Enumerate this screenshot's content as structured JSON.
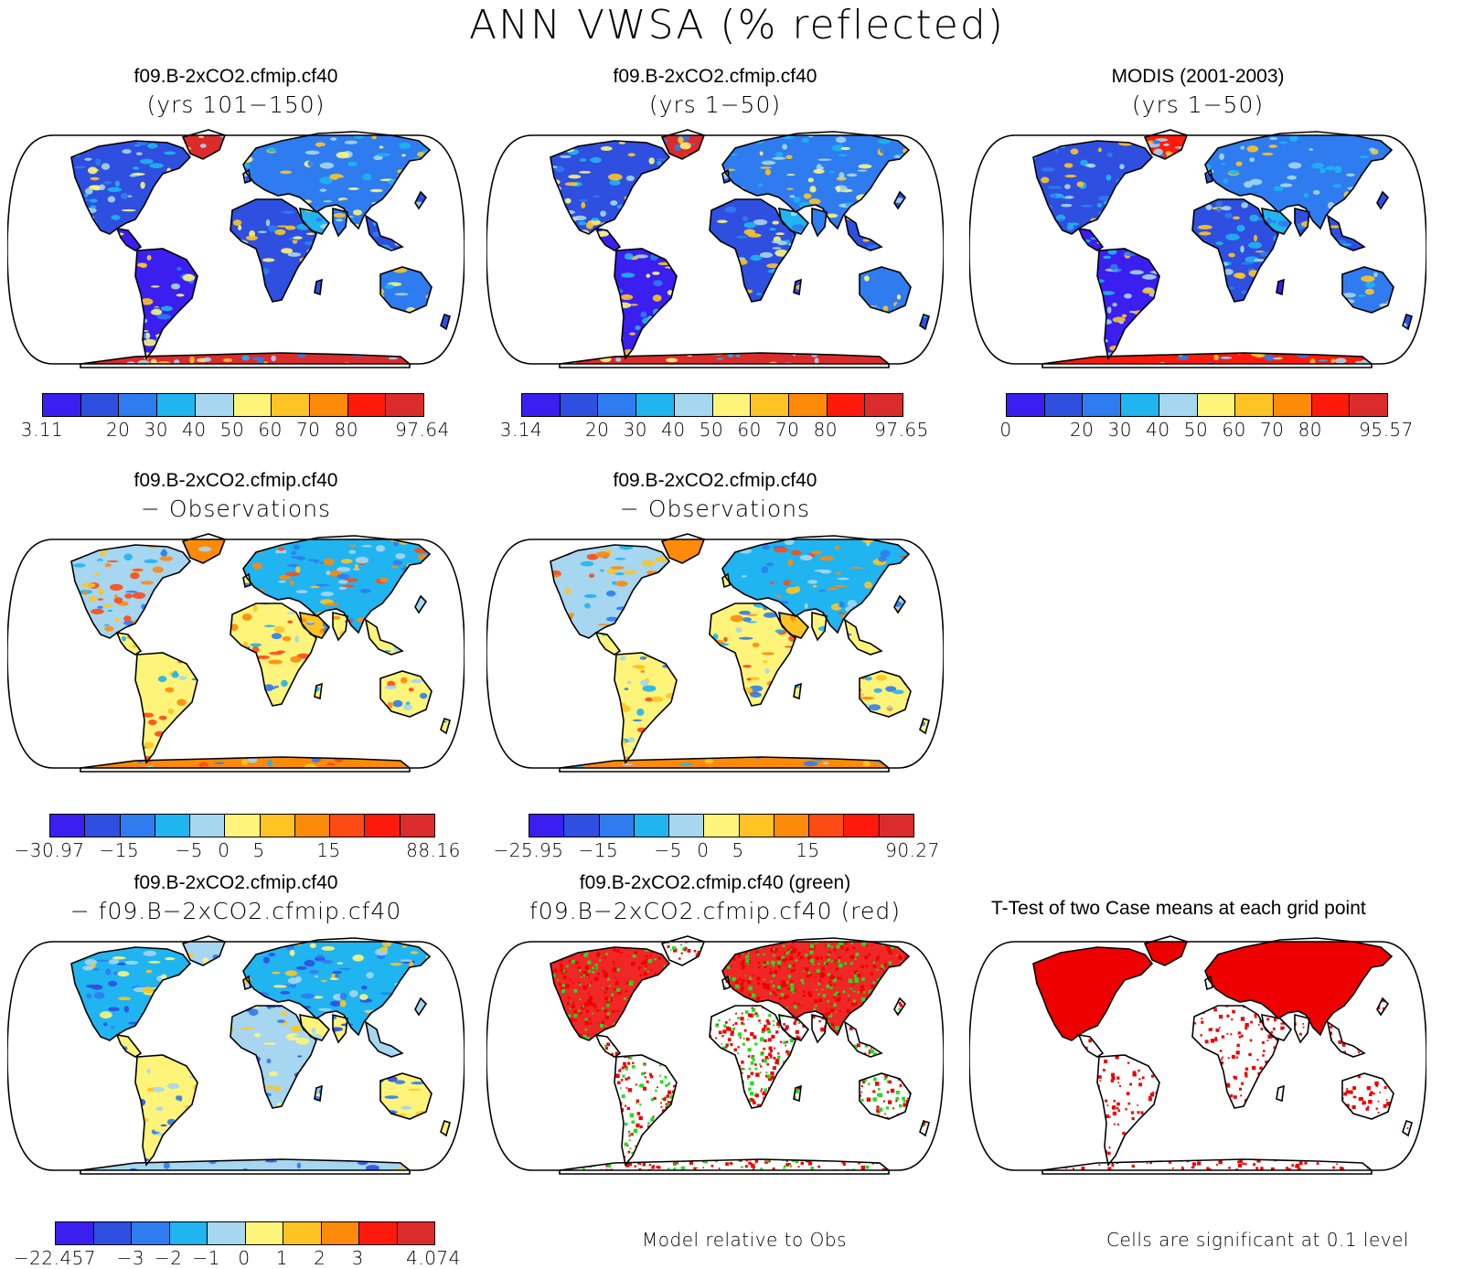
{
  "title": "ANN VWSA (% reflected)",
  "colors": {
    "abs": [
      "#3a1ff0",
      "#2e4fe0",
      "#2e7cf0",
      "#20b4f0",
      "#a6d6f0",
      "#fef47a",
      "#fec424",
      "#fe8a0a",
      "#fe1a0a",
      "#dc2b2b"
    ],
    "diff": [
      "#3a1ff0",
      "#2e4fe0",
      "#2e7cf0",
      "#20b4f0",
      "#a6d6f0",
      "#fef47a",
      "#fec424",
      "#fe8a0a",
      "#fe4a14",
      "#fe1a0a",
      "#dc2b2b"
    ],
    "t_green": "#22dd22",
    "t_red": "#ee0000"
  },
  "panels": [
    {
      "id": "p1",
      "line1": "f09.B-2xCO2.cfmip.cf40",
      "line2": "(yrs 101−150)",
      "scheme": "abs",
      "palette": "abs",
      "cbar_labels": [
        "3.11",
        "20",
        "30",
        "40",
        "50",
        "60",
        "70",
        "80",
        "97.64"
      ]
    },
    {
      "id": "p2",
      "line1": "f09.B-2xCO2.cfmip.cf40",
      "line2": "(yrs 1−50)",
      "scheme": "abs",
      "palette": "abs",
      "cbar_labels": [
        "3.14",
        "20",
        "30",
        "40",
        "50",
        "60",
        "70",
        "80",
        "97.65"
      ]
    },
    {
      "id": "p3",
      "line1": "MODIS (2001-2003)",
      "line2": "(yrs 1−50)",
      "scheme": "obs",
      "palette": "abs",
      "cbar_labels": [
        "0",
        "20",
        "30",
        "40",
        "50",
        "60",
        "70",
        "80",
        "95.57"
      ]
    },
    {
      "id": "p4",
      "line1": "f09.B-2xCO2.cfmip.cf40",
      "line2": "− Observations",
      "scheme": "diffobs",
      "palette": "diff",
      "cbar_labels": [
        "−30.97",
        "−15",
        "−5",
        "0",
        "5",
        "15",
        "88.16"
      ]
    },
    {
      "id": "p5",
      "line1": "f09.B-2xCO2.cfmip.cf40",
      "line2": "− Observations",
      "scheme": "diffobs",
      "palette": "diff",
      "cbar_labels": [
        "−25.95",
        "−15",
        "−5",
        "0",
        "5",
        "15",
        "90.27"
      ]
    },
    {
      "id": "p6",
      "line1": "f09.B-2xCO2.cfmip.cf40",
      "line2": "− f09.B−2xCO2.cfmip.cf40",
      "scheme": "diffcase",
      "palette": "abs",
      "cbar_labels": [
        "−22.457",
        "−3",
        "−2",
        "−1",
        "0",
        "1",
        "2",
        "3",
        "4.074"
      ]
    },
    {
      "id": "p7",
      "line1": "f09.B-2xCO2.cfmip.cf40 (green)",
      "line2": "f09.B−2xCO2.cfmip.cf40 (red)",
      "scheme": "ttest2",
      "note": "Model relative to Obs"
    },
    {
      "id": "p8",
      "line1": "T-Test of two Case means at each grid point",
      "line2": "",
      "scheme": "ttest1",
      "note": "Cells are significant at 0.1 level"
    }
  ]
}
